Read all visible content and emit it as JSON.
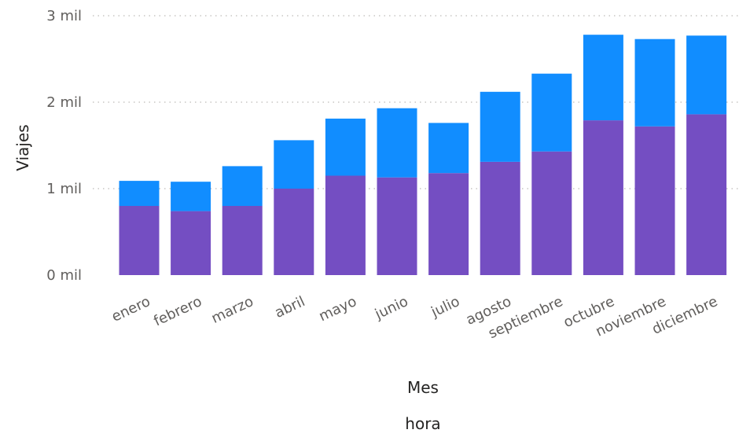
{
  "chart_data": {
    "type": "bar",
    "stacked": true,
    "xlabel": "Mes",
    "ylabel": "Viajes",
    "legend_title": "hora",
    "ylim": [
      0,
      3000
    ],
    "yticks": [
      {
        "value": 0,
        "label": "0 mil"
      },
      {
        "value": 1000,
        "label": "1 mil"
      },
      {
        "value": 2000,
        "label": "2 mil"
      },
      {
        "value": 3000,
        "label": "3 mil"
      }
    ],
    "grid": true,
    "categories": [
      "enero",
      "febrero",
      "marzo",
      "abril",
      "mayo",
      "junio",
      "julio",
      "agosto",
      "septiembre",
      "octubre",
      "noviembre",
      "diciembre"
    ],
    "series": [
      {
        "color": "#744ec2",
        "values": [
          800,
          740,
          800,
          1000,
          1150,
          1130,
          1180,
          1310,
          1430,
          1790,
          1720,
          1860
        ]
      },
      {
        "color": "#118dff",
        "values": [
          290,
          340,
          460,
          560,
          660,
          800,
          580,
          810,
          900,
          990,
          1010,
          910
        ]
      }
    ]
  }
}
